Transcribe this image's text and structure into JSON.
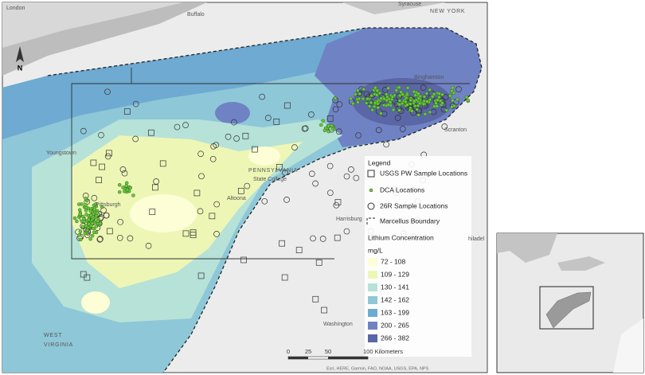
{
  "map": {
    "places": [
      "London",
      "Buffalo",
      "Syracuse",
      "NEW YORK",
      "Binghamton",
      "Scranton",
      "Youngstown",
      "PENNSYLVANIA",
      "State College",
      "Pittsburgh",
      "Altoona",
      "Harrisburg",
      "hiladel",
      "Washington",
      "WEST",
      "VIRGINIA"
    ],
    "north": "N",
    "legend": {
      "title": "Legend",
      "symbols": [
        "USGS PW Sample Locations",
        "DCA Locations",
        "26R Sample Locations",
        "Marcellus Boundary"
      ],
      "concentration_title": "Lithium Concentration",
      "unit": "mg/L",
      "classes": [
        {
          "label": "72 - 108",
          "color": "#fdfdd6"
        },
        {
          "label": "109 - 129",
          "color": "#eef6b6"
        },
        {
          "label": "130 - 141",
          "color": "#b6e2d8"
        },
        {
          "label": "142 - 162",
          "color": "#8ec7d8"
        },
        {
          "label": "163 - 199",
          "color": "#6eaad1"
        },
        {
          "label": "200 - 265",
          "color": "#6f82c3"
        },
        {
          "label": "266 - 382",
          "color": "#5a66a5"
        }
      ]
    },
    "scale": [
      "0",
      "25",
      "50",
      "100 Kilometers"
    ],
    "attribution": "Esri, HERE, Garmin, FAO, NOAA, USGS, EPA, NPS"
  }
}
